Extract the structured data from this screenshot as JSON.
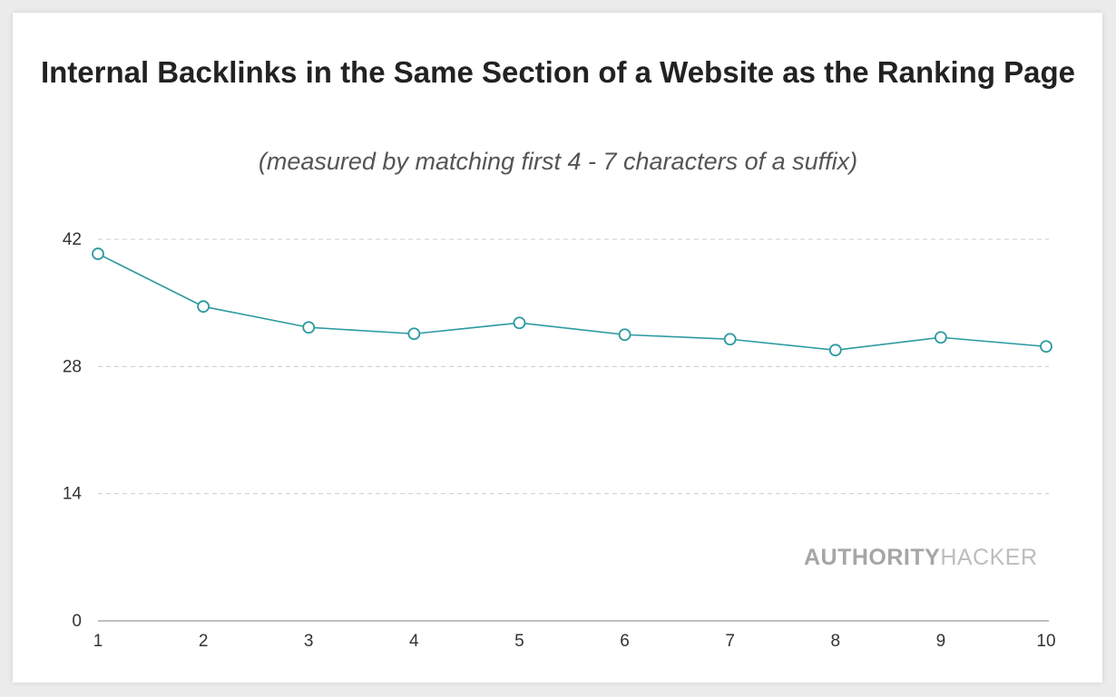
{
  "chart_data": {
    "type": "line",
    "title": "Internal Backlinks in the Same Section of a Website as the Ranking Page",
    "subtitle": "(measured by matching first 4 - 7 characters of a suffix)",
    "xlabel": "",
    "ylabel": "",
    "x": [
      1,
      2,
      3,
      4,
      5,
      6,
      7,
      8,
      9,
      10
    ],
    "x_tick_labels": [
      "1",
      "2",
      "3",
      "4",
      "5",
      "6",
      "7",
      "8",
      "9",
      "10"
    ],
    "y_ticks": [
      0,
      14,
      28,
      42
    ],
    "y_tick_labels": [
      "0",
      "14",
      "28",
      "42"
    ],
    "ylim": [
      0,
      42
    ],
    "series": [
      {
        "values": [
          40.4,
          34.6,
          32.3,
          31.6,
          32.8,
          31.5,
          31.0,
          29.8,
          31.2,
          30.2
        ],
        "color": "#2b9aa0"
      }
    ],
    "grid": "horizontal dashed",
    "legend": "none"
  },
  "watermark": {
    "part1": "AUTHORITY",
    "part2": "HACKER",
    "color1": "#a6a6a6",
    "color2": "#bdbdbd"
  },
  "colors": {
    "grid": "#cccccc",
    "axis": "#999999",
    "line": "#2b9aa0"
  }
}
